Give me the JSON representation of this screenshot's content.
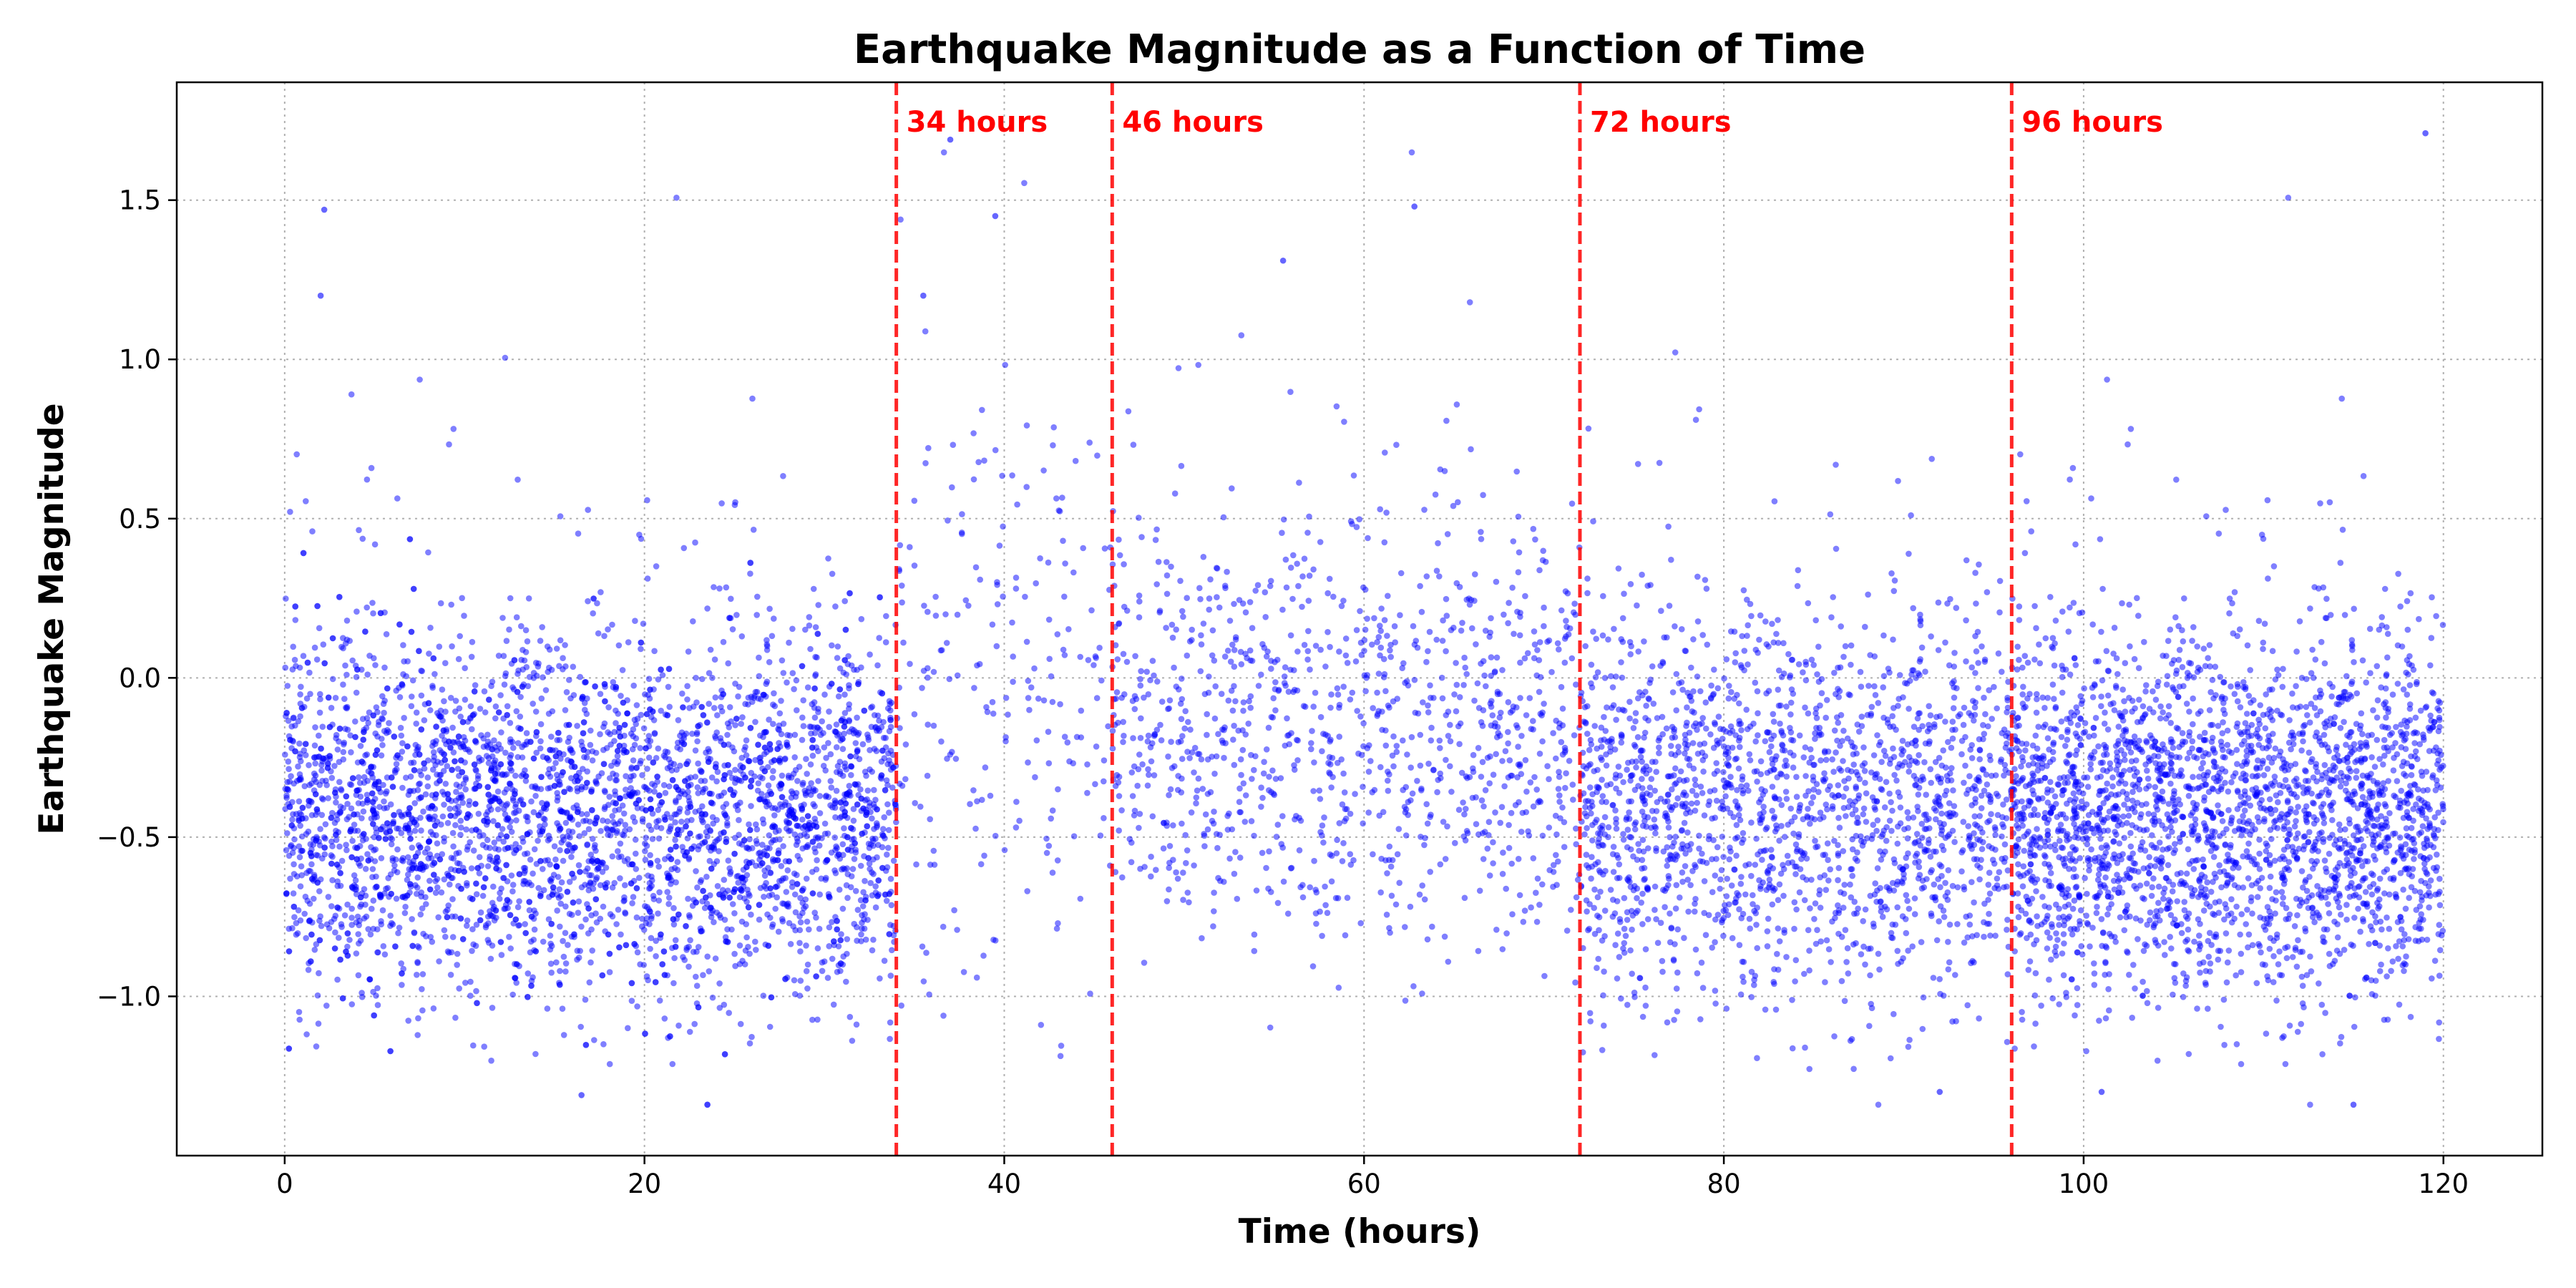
{
  "chart_data": {
    "type": "scatter",
    "title": "Earthquake Magnitude as a Function of Time",
    "xlabel": "Time (hours)",
    "ylabel": "Earthquake Magnitude",
    "xlim": [
      -6,
      125.5
    ],
    "ylim": [
      -1.5,
      1.87
    ],
    "x_ticks": [
      0,
      20,
      40,
      60,
      80,
      100,
      120
    ],
    "x_tick_labels": [
      "0",
      "20",
      "40",
      "60",
      "80",
      "100",
      "120"
    ],
    "y_ticks": [
      -1.0,
      -0.5,
      0.0,
      0.5,
      1.0,
      1.5
    ],
    "y_tick_labels": [
      "−1.0",
      "−0.5",
      "0.0",
      "0.5",
      "1.0",
      "1.5"
    ],
    "grid": true,
    "point_color": "#0000ff",
    "marker_color": "#ff0000",
    "time_range": [
      0,
      120
    ],
    "segments": [
      {
        "x_start": 0,
        "x_end": 34,
        "mean": -0.44,
        "spread": 0.28
      },
      {
        "x_start": 34,
        "x_end": 46,
        "mean": -0.05,
        "spread": 0.45
      },
      {
        "x_start": 46,
        "x_end": 72,
        "mean": -0.2,
        "spread": 0.33
      },
      {
        "x_start": 72,
        "x_end": 96,
        "mean": -0.4,
        "spread": 0.3
      },
      {
        "x_start": 96,
        "x_end": 120,
        "mean": -0.44,
        "spread": 0.28
      }
    ],
    "vertical_markers": [
      {
        "x": 34,
        "label": "34 hours"
      },
      {
        "x": 46,
        "label": "46 hours"
      },
      {
        "x": 72,
        "label": "72 hours"
      },
      {
        "x": 96,
        "label": "96 hours"
      }
    ],
    "notable_points": [
      {
        "x": 2.2,
        "y": 1.47
      },
      {
        "x": 39.5,
        "y": 1.45
      },
      {
        "x": 62.8,
        "y": 1.48
      },
      {
        "x": 119.0,
        "y": 1.71
      },
      {
        "x": 37.0,
        "y": 1.69
      },
      {
        "x": 2.0,
        "y": 1.2
      },
      {
        "x": 35.5,
        "y": 1.2
      },
      {
        "x": 55.5,
        "y": 1.31
      },
      {
        "x": 115.0,
        "y": -1.34
      },
      {
        "x": 16.5,
        "y": -1.31
      },
      {
        "x": 92.0,
        "y": -1.3
      },
      {
        "x": 101.0,
        "y": -1.3
      }
    ]
  }
}
